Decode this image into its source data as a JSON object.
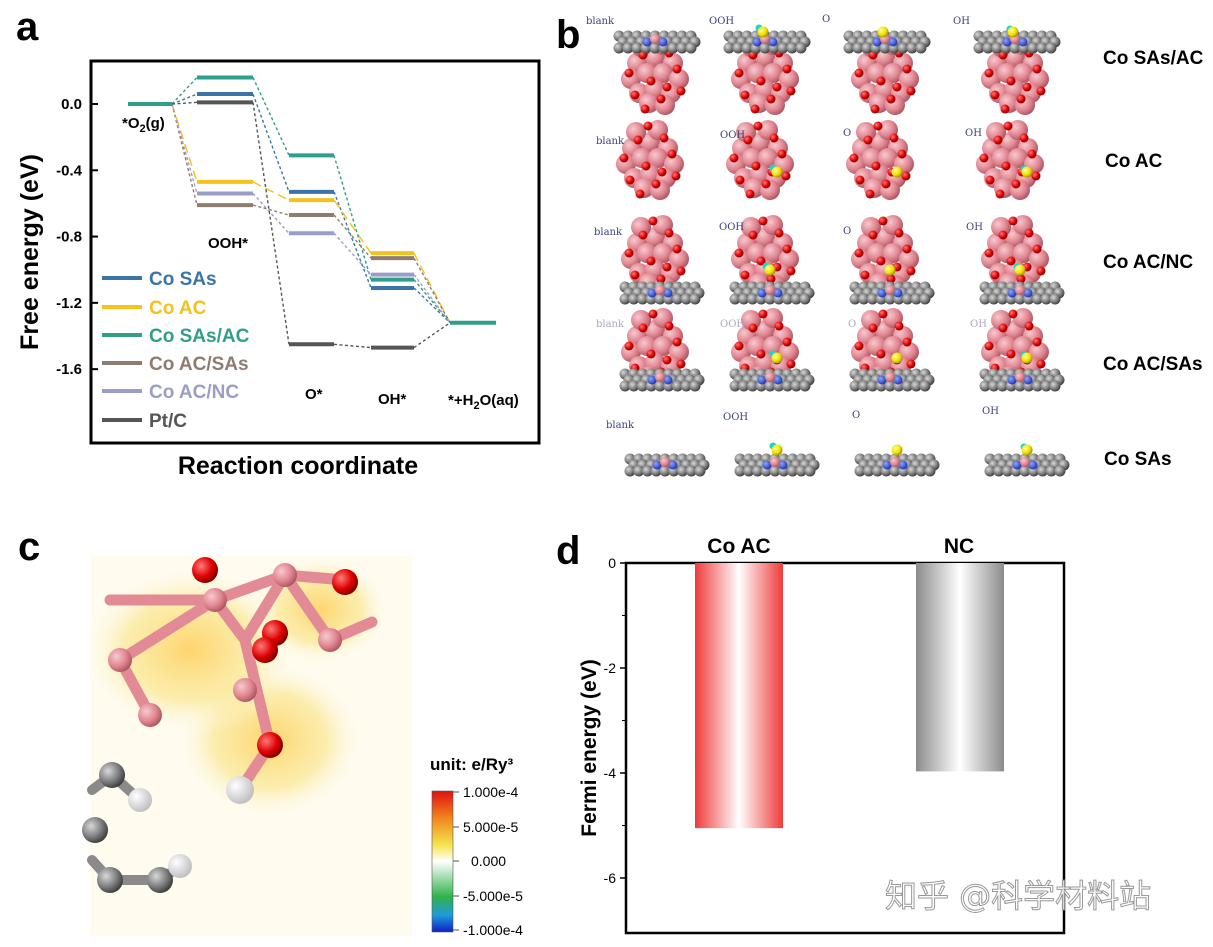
{
  "panel_labels": [
    "a",
    "b",
    "c",
    "d"
  ],
  "colors": {
    "co_sas": "#3a74a8",
    "co_ac": "#f5c21b",
    "co_sas_ac": "#2f9e8a",
    "co_ac_sas": "#8f7c70",
    "co_ac_nc": "#9a9ec6",
    "pt_c": "#555555",
    "bar_co_ac": "#ef3b3b",
    "bar_nc": "#8c8c8c"
  },
  "chart_data": [
    {
      "panel": "a",
      "type": "line",
      "xlabel": "Reaction coordinate",
      "ylabel": "Free energy (eV)",
      "ylim": [
        -1.6,
        0.2
      ],
      "yticks": [
        "0.0",
        "-0.4",
        "-0.8",
        "-1.2",
        "-1.6"
      ],
      "ytick_values": [
        0.0,
        -0.4,
        -0.8,
        -1.2,
        -1.6
      ],
      "steps": [
        "*O2(g)",
        "OOH*",
        "O*",
        "OH*",
        "*+H2O(aq)"
      ],
      "series": [
        {
          "name": "Co SAs",
          "color_key": "co_sas",
          "values": [
            0.0,
            0.06,
            -0.53,
            -1.11,
            -1.32
          ]
        },
        {
          "name": "Co AC",
          "color_key": "co_ac",
          "values": [
            0.0,
            -0.47,
            -0.58,
            -0.9,
            -1.32
          ]
        },
        {
          "name": "Co SAs/AC",
          "color_key": "co_sas_ac",
          "values": [
            0.0,
            0.16,
            -0.31,
            -1.06,
            -1.32
          ]
        },
        {
          "name": "Co AC/SAs",
          "color_key": "co_ac_sas",
          "values": [
            0.0,
            -0.61,
            -0.67,
            -0.93,
            -1.32
          ]
        },
        {
          "name": "Co AC/NC",
          "color_key": "co_ac_nc",
          "values": [
            0.0,
            -0.54,
            -0.78,
            -1.03,
            -1.32
          ]
        },
        {
          "name": "Pt/C",
          "color_key": "pt_c",
          "values": [
            0.0,
            0.01,
            -1.45,
            -1.47,
            -1.32
          ]
        }
      ]
    },
    {
      "panel": "d",
      "type": "bar",
      "ylabel": "Fermi energy (eV)",
      "ylim": [
        -7,
        0
      ],
      "yticks": [
        "0",
        "-2",
        "-4",
        "-6"
      ],
      "ytick_values": [
        0,
        -2,
        -4,
        -6
      ],
      "categories": [
        "Co AC",
        "NC"
      ],
      "values": [
        -5.05,
        -3.97
      ]
    }
  ],
  "panel_b": {
    "row_labels": [
      "Co SAs/AC",
      "Co AC",
      "Co AC/NC",
      "Co AC/SAs",
      "Co SAs"
    ],
    "column_labels": [
      "blank",
      "OOH",
      "O",
      "OH"
    ]
  },
  "panel_c": {
    "colorbar_title": "unit: e/Ry³",
    "colorbar_ticks": [
      "1.000e-4",
      "5.000e-5",
      "0.000",
      "-5.000e-5",
      "-1.000e-4"
    ]
  },
  "watermark": "知乎 @科学材料站"
}
